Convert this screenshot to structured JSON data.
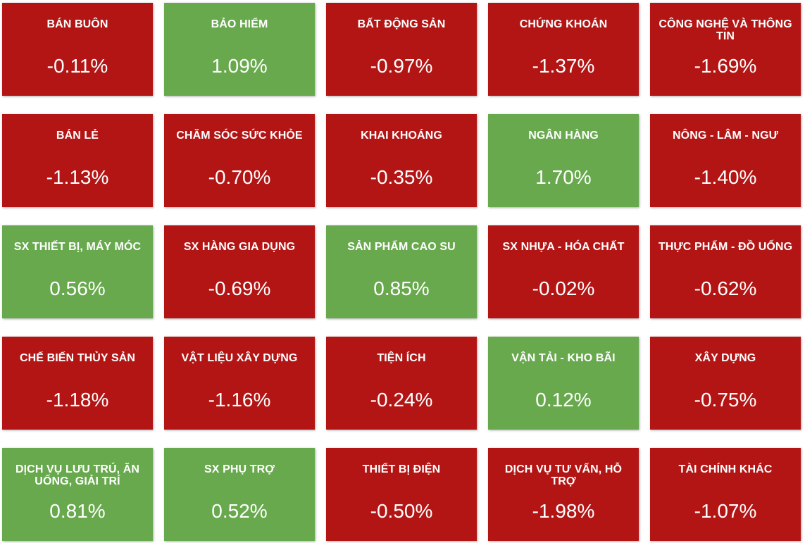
{
  "chart_data": {
    "type": "heatmap",
    "colors": {
      "negative": "#b31515",
      "positive": "#68a94e",
      "text": "#ffffff"
    },
    "tiles": [
      {
        "name": "BÁN BUÔN",
        "value": -0.11,
        "label": "-0.11%"
      },
      {
        "name": "BẢO HIỂM",
        "value": 1.09,
        "label": "1.09%"
      },
      {
        "name": "BẤT ĐỘNG SẢN",
        "value": -0.97,
        "label": "-0.97%"
      },
      {
        "name": "CHỨNG KHOÁN",
        "value": -1.37,
        "label": "-1.37%"
      },
      {
        "name": "CÔNG NGHỆ VÀ THÔNG TIN",
        "value": -1.69,
        "label": "-1.69%"
      },
      {
        "name": "BÁN LẺ",
        "value": -1.13,
        "label": "-1.13%"
      },
      {
        "name": "CHĂM SÓC SỨC KHỎE",
        "value": -0.7,
        "label": "-0.70%"
      },
      {
        "name": "KHAI KHOÁNG",
        "value": -0.35,
        "label": "-0.35%"
      },
      {
        "name": "NGÂN HÀNG",
        "value": 1.7,
        "label": "1.70%"
      },
      {
        "name": "NÔNG - LÂM - NGƯ",
        "value": -1.4,
        "label": "-1.40%"
      },
      {
        "name": "SX THIẾT BỊ, MÁY MÓC",
        "value": 0.56,
        "label": "0.56%"
      },
      {
        "name": "SX HÀNG GIA DỤNG",
        "value": -0.69,
        "label": "-0.69%"
      },
      {
        "name": "SẢN PHẨM CAO SU",
        "value": 0.85,
        "label": "0.85%"
      },
      {
        "name": "SX NHỰA - HÓA CHẤT",
        "value": -0.02,
        "label": "-0.02%"
      },
      {
        "name": "THỰC PHẨM - ĐỒ UỐNG",
        "value": -0.62,
        "label": "-0.62%"
      },
      {
        "name": "CHẾ BIẾN THỦY SẢN",
        "value": -1.18,
        "label": "-1.18%"
      },
      {
        "name": "VẬT LIỆU XÂY DỰNG",
        "value": -1.16,
        "label": "-1.16%"
      },
      {
        "name": "TIỆN ÍCH",
        "value": -0.24,
        "label": "-0.24%"
      },
      {
        "name": "VẬN TẢI - KHO BÃI",
        "value": 0.12,
        "label": "0.12%"
      },
      {
        "name": "XÂY DỰNG",
        "value": -0.75,
        "label": "-0.75%"
      },
      {
        "name": "DỊCH VỤ LƯU TRÚ, ĂN UỐNG, GIẢI TRÍ",
        "value": 0.81,
        "label": "0.81%"
      },
      {
        "name": "SX PHỤ TRỢ",
        "value": 0.52,
        "label": "0.52%"
      },
      {
        "name": "THIẾT BỊ ĐIỆN",
        "value": -0.5,
        "label": "-0.50%"
      },
      {
        "name": "DỊCH VỤ TƯ VẤN, HỖ TRỢ",
        "value": -1.98,
        "label": "-1.98%"
      },
      {
        "name": "TÀI CHÍNH KHÁC",
        "value": -1.07,
        "label": "-1.07%"
      }
    ]
  }
}
